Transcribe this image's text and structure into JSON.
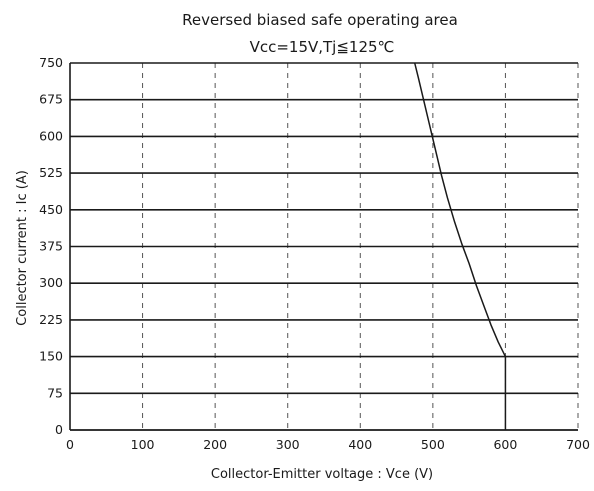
{
  "chart_data": {
    "type": "line",
    "title": "Reversed biased safe operating area",
    "subtitle": "Vcc=15V,Tj≦125℃",
    "xlabel": "Collector-Emitter voltage : Vce (V)",
    "ylabel": "Collector current : Ic (A)",
    "xlim": [
      0,
      700
    ],
    "ylim": [
      0,
      750
    ],
    "xticks": [
      0,
      100,
      200,
      300,
      400,
      500,
      600,
      700
    ],
    "yticks": [
      0,
      75,
      150,
      225,
      300,
      375,
      450,
      525,
      600,
      675,
      750
    ],
    "grid": {
      "horizontal": "solid",
      "vertical": "dashed"
    },
    "series": [
      {
        "x": [
          475,
          480,
          488,
          496,
          504,
          512,
          520,
          530,
          540,
          550,
          560,
          570,
          580,
          590,
          600,
          600
        ],
        "y": [
          750,
          720,
          670,
          620,
          570,
          520,
          475,
          425,
          380,
          340,
          295,
          255,
          215,
          180,
          150,
          0
        ]
      }
    ],
    "colors": {
      "line": "#1a1a1a",
      "hgrid": "#1a1a1a",
      "vgrid": "#555555"
    }
  }
}
